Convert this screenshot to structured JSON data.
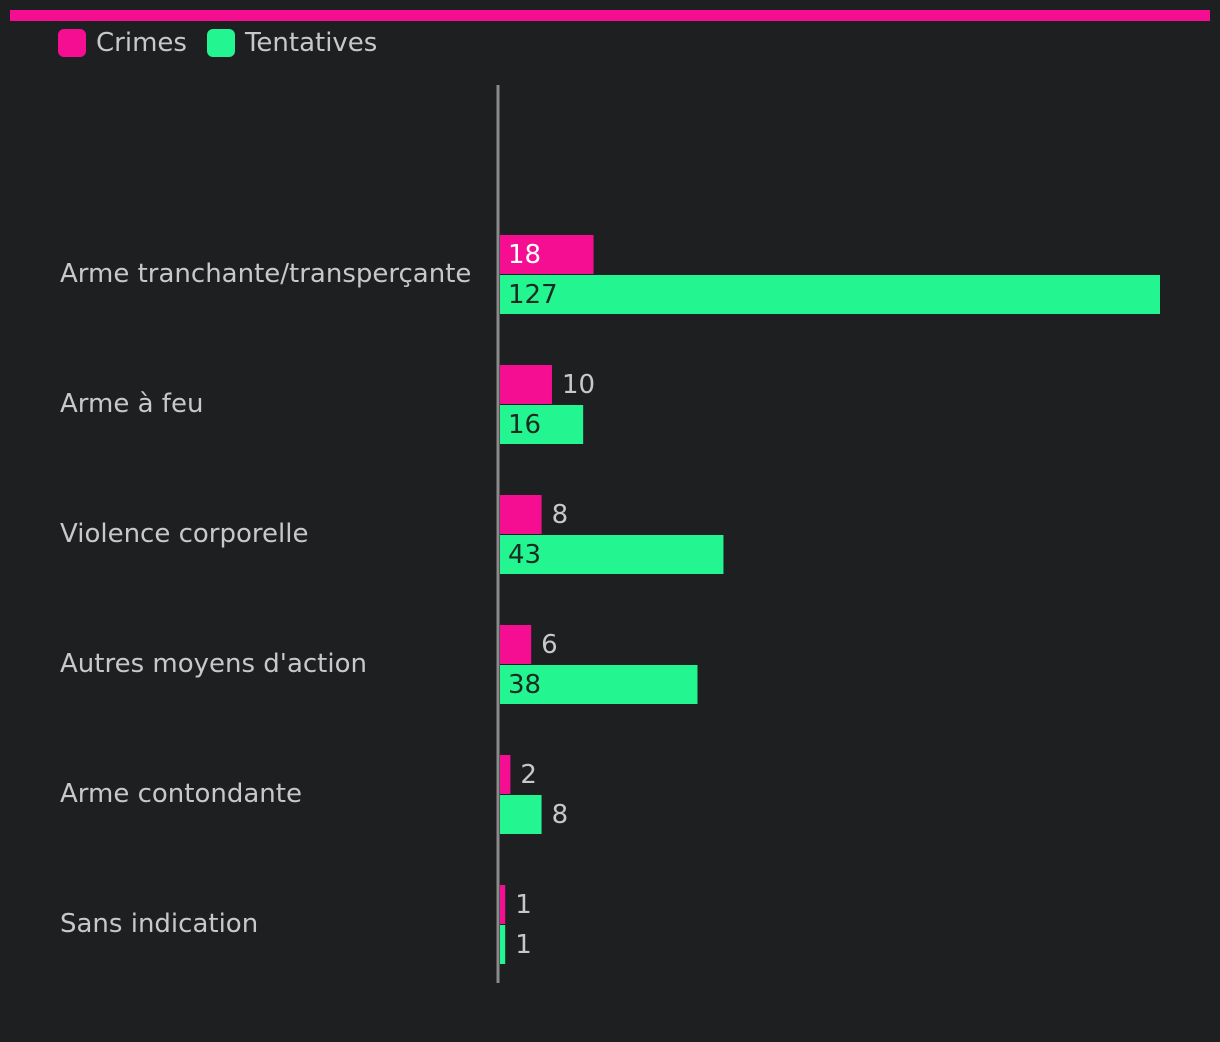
{
  "colors": {
    "accent": "#f50e92",
    "crimes": "#f50e92",
    "tentatives": "#23f591",
    "axis": "#8a8a8a",
    "label": "#c8c8c8",
    "background": "#1e1f21"
  },
  "legend": {
    "items": [
      {
        "label": "Crimes"
      },
      {
        "label": "Tentatives"
      }
    ]
  },
  "chart_data": {
    "type": "bar",
    "orientation": "horizontal",
    "title": "",
    "xlabel": "",
    "ylabel": "",
    "grid": false,
    "legend_position": "top-left",
    "xlim": [
      0,
      133
    ],
    "categories": [
      "Arme tranchante/transperçante",
      "Arme à feu",
      "Violence corporelle",
      "Autres moyens d'action",
      "Arme contondante",
      "Sans indication"
    ],
    "series": [
      {
        "name": "Crimes",
        "values": [
          18,
          10,
          8,
          6,
          2,
          1
        ]
      },
      {
        "name": "Tentatives",
        "values": [
          127,
          16,
          43,
          38,
          8,
          1
        ]
      }
    ]
  }
}
